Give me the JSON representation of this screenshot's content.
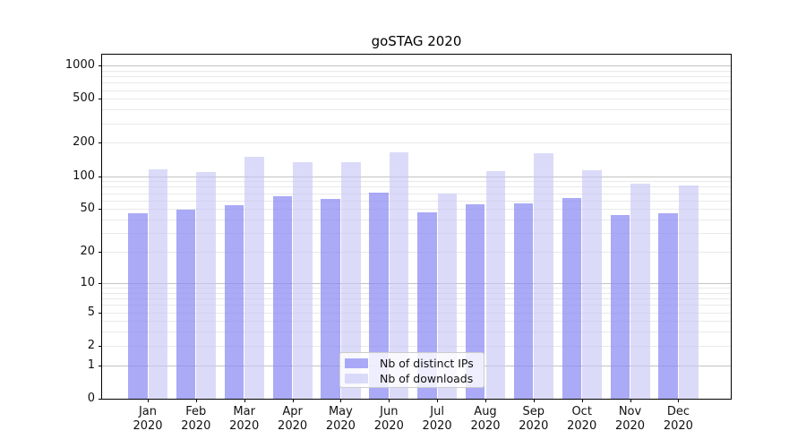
{
  "chart_data": {
    "type": "bar",
    "title": "goSTAG 2020",
    "categories": [
      "Jan 2020",
      "Feb 2020",
      "Mar 2020",
      "Apr 2020",
      "May 2020",
      "Jun 2020",
      "Jul 2020",
      "Aug 2020",
      "Sep 2020",
      "Oct 2020",
      "Nov 2020",
      "Dec 2020"
    ],
    "series": [
      {
        "name": "Nb of distinct IPs",
        "color": "rgba(137,137,244,0.72)",
        "values": [
          46,
          49,
          54,
          65,
          62,
          71,
          47,
          55,
          56,
          63,
          44,
          46
        ]
      },
      {
        "name": "Nb of downloads",
        "color": "rgba(200,200,246,0.65)",
        "values": [
          115,
          109,
          150,
          135,
          134,
          165,
          70,
          111,
          160,
          113,
          85,
          82
        ]
      }
    ],
    "xlabel": "",
    "ylabel": "",
    "yscale": "log1p",
    "y_ticks": [
      0,
      1,
      2,
      5,
      10,
      20,
      50,
      100,
      200,
      500,
      1000
    ],
    "ylim": [
      0,
      1250
    ],
    "grid": "horizontal",
    "legend_position": "lower center"
  },
  "colors": {
    "background": "#ffffff",
    "spine": "#000000",
    "grid_major": "#c3c3c3",
    "grid_minor": "#e9e9e9",
    "bar_distinct_ips": "rgba(137,137,244,0.72)",
    "bar_downloads": "rgba(200,200,246,0.65)",
    "legend_border": "#cccccc",
    "legend_background": "rgba(255,255,255,0.8)"
  }
}
